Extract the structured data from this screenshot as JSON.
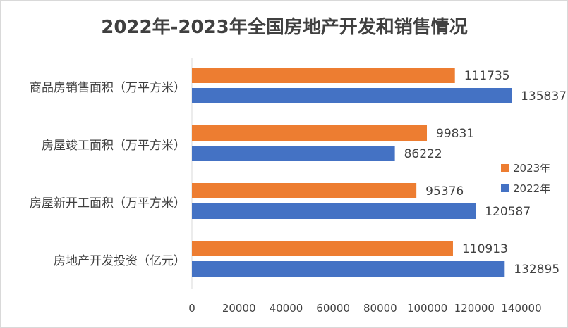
{
  "chart_data": {
    "type": "bar",
    "orientation": "horizontal",
    "title": "2022年-2023年全国房地产开发和销售情况",
    "categories": [
      "商品房销售面积（万平方米）",
      "房屋竣工面积（万平方米）",
      "房屋新开工面积（万平方米）",
      "房地产开发投资（亿元）"
    ],
    "series": [
      {
        "name": "2023年",
        "color": "#ED7D31",
        "values": [
          111735,
          99831,
          95376,
          110913
        ]
      },
      {
        "name": "2022年",
        "color": "#4472C4",
        "values": [
          135837,
          86222,
          120587,
          132895
        ]
      }
    ],
    "xlim": [
      0,
      140000
    ],
    "xticks": [
      "0",
      "20000",
      "40000",
      "60000",
      "80000",
      "100000",
      "120000",
      "140000"
    ],
    "xlabel": "",
    "ylabel": "",
    "grid": false,
    "legend_position": "right"
  }
}
